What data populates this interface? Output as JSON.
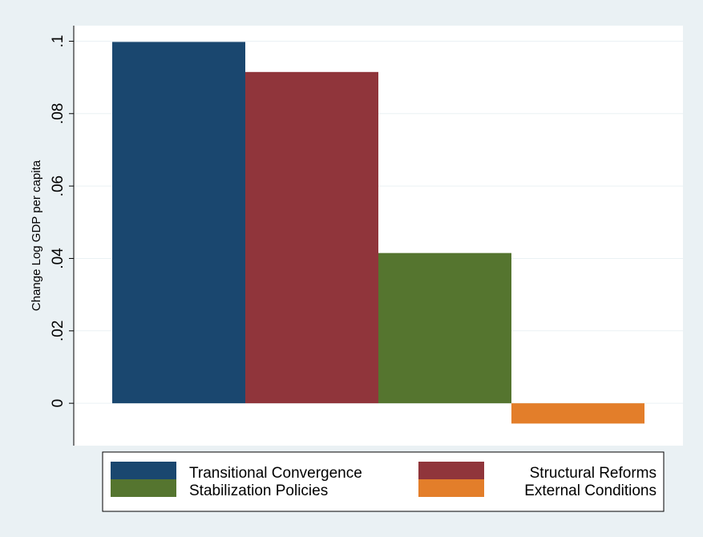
{
  "chart_data": {
    "type": "bar",
    "title": "",
    "xlabel": "",
    "ylabel": "Change Log GDP per capita",
    "ylim": [
      -0.0117,
      0.1043
    ],
    "yticks": [
      0,
      0.02,
      0.04,
      0.06,
      0.08,
      0.1
    ],
    "ytick_labels": [
      "0",
      ".02",
      ".04",
      ".06",
      ".08",
      ".1"
    ],
    "grid": "horizontal",
    "legend_position": "bottom",
    "series": [
      {
        "name": "Transitional Convergence",
        "value": 0.0998,
        "color": "#1a476f"
      },
      {
        "name": "Structural Reforms",
        "value": 0.0915,
        "color": "#90353b"
      },
      {
        "name": "Stabilization Policies",
        "value": 0.0415,
        "color": "#55752f"
      },
      {
        "name": "External Conditions",
        "value": -0.0056,
        "color": "#e37e2a"
      }
    ]
  }
}
